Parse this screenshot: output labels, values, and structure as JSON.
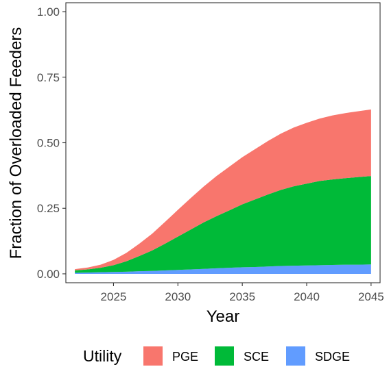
{
  "chart_data": {
    "type": "area",
    "stacked": true,
    "xlabel": "Year",
    "ylabel": "Fraction of Overloaded Feeders",
    "xlim": [
      2021.3,
      2045.7
    ],
    "ylim": [
      -0.034,
      1.034
    ],
    "xticks": [
      2025,
      2030,
      2035,
      2040,
      2045
    ],
    "xtick_labels": [
      "2025",
      "2030",
      "2035",
      "2040",
      "2045"
    ],
    "yticks": [
      0,
      0.25,
      0.5,
      0.75,
      1.0
    ],
    "ytick_labels": [
      "0.00",
      "0.25",
      "0.50",
      "0.75",
      "1.00"
    ],
    "grid": false,
    "legend": {
      "title": "Utility",
      "position": "bottom"
    },
    "x": [
      2022,
      2023,
      2024,
      2025,
      2026,
      2027,
      2028,
      2029,
      2030,
      2031,
      2032,
      2033,
      2034,
      2035,
      2036,
      2037,
      2038,
      2039,
      2040,
      2041,
      2042,
      2043,
      2044,
      2045
    ],
    "series": [
      {
        "name": "PGE",
        "color": "#F8766D",
        "values": [
          0.005,
          0.007,
          0.012,
          0.02,
          0.032,
          0.047,
          0.064,
          0.083,
          0.102,
          0.12,
          0.137,
          0.153,
          0.167,
          0.18,
          0.192,
          0.204,
          0.215,
          0.224,
          0.232,
          0.238,
          0.244,
          0.248,
          0.251,
          0.254
        ]
      },
      {
        "name": "SCE",
        "color": "#00BA38",
        "values": [
          0.009,
          0.012,
          0.017,
          0.026,
          0.04,
          0.058,
          0.078,
          0.102,
          0.127,
          0.152,
          0.177,
          0.199,
          0.219,
          0.24,
          0.258,
          0.275,
          0.29,
          0.303,
          0.312,
          0.321,
          0.326,
          0.33,
          0.334,
          0.337
        ]
      },
      {
        "name": "SDGE",
        "color": "#619CFF",
        "values": [
          0.004,
          0.005,
          0.006,
          0.007,
          0.008,
          0.01,
          0.011,
          0.013,
          0.015,
          0.017,
          0.019,
          0.021,
          0.023,
          0.025,
          0.026,
          0.028,
          0.03,
          0.031,
          0.032,
          0.033,
          0.034,
          0.035,
          0.035,
          0.036
        ]
      }
    ]
  }
}
